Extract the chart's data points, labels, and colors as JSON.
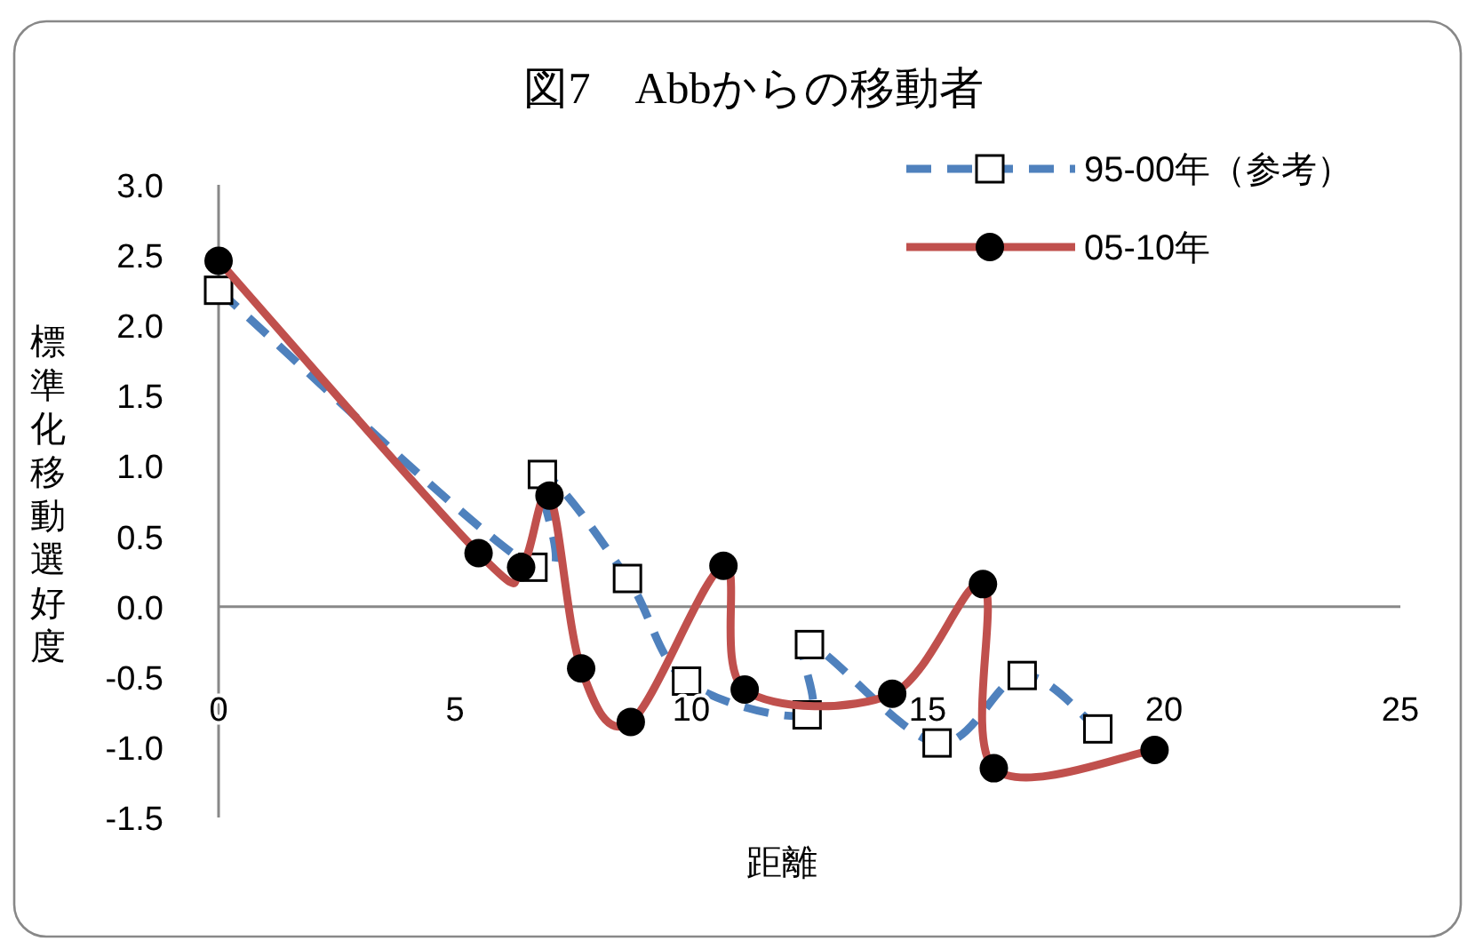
{
  "chart_data": {
    "type": "line",
    "title": "図7　Abbからの移動者",
    "xlabel": "距離",
    "ylabel": "標準化移動選好度",
    "xlim": [
      0,
      25
    ],
    "xticks": [
      0,
      5,
      10,
      15,
      20,
      25
    ],
    "ylim": [
      -1.5,
      3
    ],
    "yticks": [
      {
        "value": -1.5,
        "label": "-1.5"
      },
      {
        "value": -1,
        "label": "-1.0"
      },
      {
        "value": -0.5,
        "label": "-0.5"
      },
      {
        "value": 0,
        "label": "0.0"
      },
      {
        "value": 0.5,
        "label": "0.5"
      },
      {
        "value": 1,
        "label": "1.0"
      },
      {
        "value": 1.5,
        "label": "1.5"
      },
      {
        "value": 2,
        "label": "2.0"
      },
      {
        "value": 2.5,
        "label": "2.5"
      },
      {
        "value": 3,
        "label": "3.0"
      }
    ],
    "grid": false,
    "legend": "top right",
    "series": [
      {
        "name": "95-00年（参考）",
        "color": "#4f81bd",
        "marker": "square",
        "line_style": "dashed",
        "x": [
          0,
          6.65,
          6.85,
          8.65,
          9.9,
          12.45,
          12.5,
          15.2,
          17,
          18.6
        ],
        "values": [
          2.25,
          0.28,
          0.94,
          0.2,
          -0.53,
          -0.77,
          -0.27,
          -0.97,
          -0.49,
          -0.87
        ]
      },
      {
        "name": "05-10年",
        "color": "#c0504d",
        "marker": "circle",
        "line_style": "solid",
        "x": [
          0,
          5.5,
          6.4,
          7.0,
          7.67,
          8.72,
          10.68,
          11.13,
          14.25,
          16.17,
          16.4,
          19.8
        ],
        "values": [
          2.46,
          0.38,
          0.28,
          0.79,
          -0.44,
          -0.82,
          0.29,
          -0.59,
          -0.62,
          0.16,
          -1.15,
          -1.02
        ]
      }
    ]
  }
}
